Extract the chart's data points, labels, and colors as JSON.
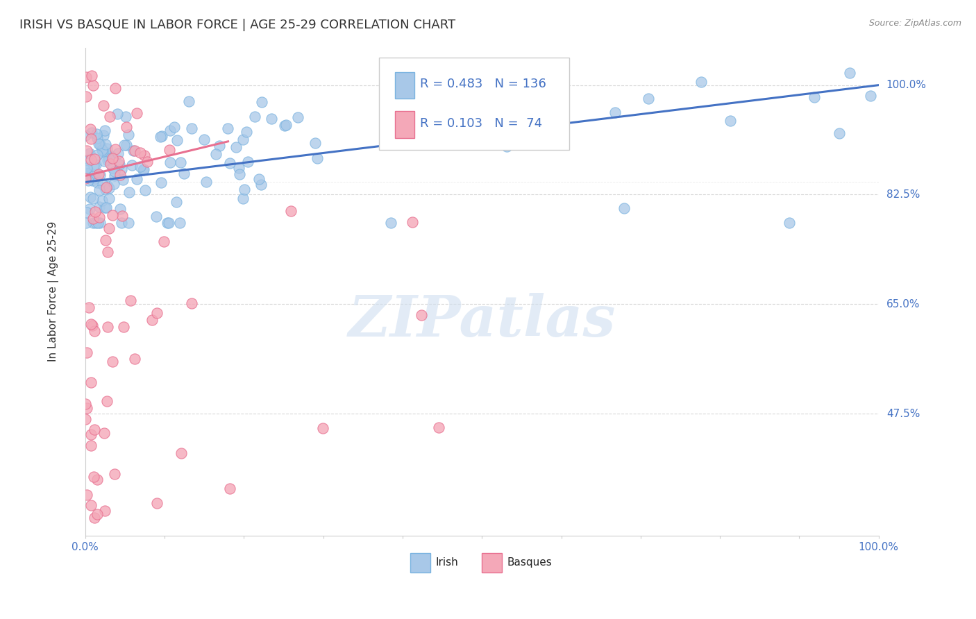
{
  "title": "IRISH VS BASQUE IN LABOR FORCE | AGE 25-29 CORRELATION CHART",
  "source_text": "Source: ZipAtlas.com",
  "ylabel": "In Labor Force | Age 25-29",
  "ytick_labels": [
    "47.5%",
    "65.0%",
    "82.5%",
    "100.0%"
  ],
  "ytick_values": [
    0.475,
    0.65,
    0.825,
    1.0
  ],
  "xlim": [
    0.0,
    1.0
  ],
  "ylim": [
    0.28,
    1.06
  ],
  "irish_color": "#a8c8e8",
  "irish_edge_color": "#7ab3e0",
  "basque_color": "#f4a8b8",
  "basque_edge_color": "#e87090",
  "irish_line_color": "#4472c4",
  "basque_line_color": "#e87090",
  "legend_text_color": "#4472c4",
  "irish_R": 0.483,
  "irish_N": 136,
  "basque_R": 0.103,
  "basque_N": 74,
  "irish_trend_x0": 0.0,
  "irish_trend_y0": 0.845,
  "irish_trend_x1": 1.0,
  "irish_trend_y1": 1.0,
  "basque_trend_x0": 0.0,
  "basque_trend_x1": 0.18,
  "basque_trend_y0": 0.855,
  "basque_trend_y1": 0.91,
  "legend_irish_label": "Irish",
  "legend_basque_label": "Basques",
  "background_color": "#ffffff",
  "grid_color": "#d8d8d8",
  "watermark_text": "ZIPatlas",
  "title_fontsize": 13,
  "axis_label_fontsize": 11,
  "tick_fontsize": 11
}
